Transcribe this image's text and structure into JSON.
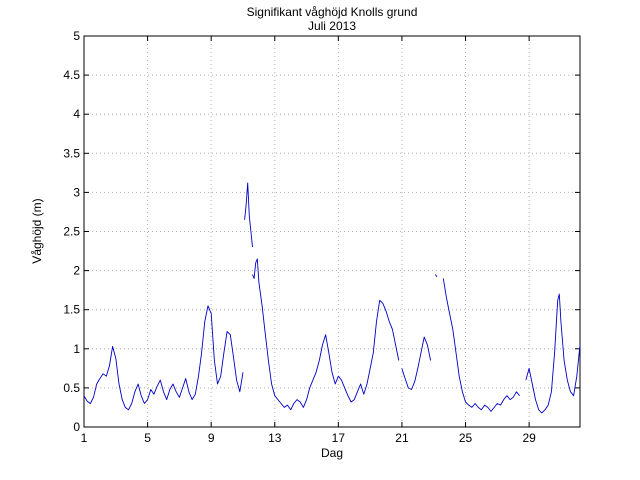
{
  "chart_data": {
    "type": "line",
    "title": "Signifikant våghöjd Knolls grund",
    "subtitle": "Juli 2013",
    "xlabel": "Dag",
    "ylabel": "Våghöjd (m)",
    "xlim": [
      1,
      32.2
    ],
    "ylim": [
      0,
      5
    ],
    "xticks": [
      1,
      5,
      9,
      13,
      17,
      21,
      25,
      29
    ],
    "yticks": [
      0,
      0.5,
      1,
      1.5,
      2,
      2.5,
      3,
      3.5,
      4,
      4.5,
      5
    ],
    "ytick_labels": [
      "0",
      "0.5",
      "1",
      "1.5",
      "2",
      "2.5",
      "3",
      "3.5",
      "4",
      "4.5",
      "5"
    ],
    "grid": true,
    "line_color": "#0000c8",
    "series": [
      {
        "segments": [
          [
            [
              1.0,
              0.4
            ],
            [
              1.2,
              0.33
            ],
            [
              1.4,
              0.3
            ],
            [
              1.6,
              0.38
            ],
            [
              1.8,
              0.55
            ],
            [
              2.0,
              0.62
            ],
            [
              2.2,
              0.68
            ],
            [
              2.4,
              0.65
            ],
            [
              2.6,
              0.78
            ],
            [
              2.8,
              1.03
            ],
            [
              3.0,
              0.88
            ],
            [
              3.2,
              0.55
            ],
            [
              3.4,
              0.35
            ],
            [
              3.6,
              0.25
            ],
            [
              3.8,
              0.22
            ],
            [
              4.0,
              0.3
            ],
            [
              4.2,
              0.45
            ],
            [
              4.4,
              0.55
            ],
            [
              4.6,
              0.4
            ],
            [
              4.8,
              0.3
            ],
            [
              5.0,
              0.35
            ],
            [
              5.2,
              0.48
            ],
            [
              5.4,
              0.42
            ],
            [
              5.6,
              0.52
            ],
            [
              5.8,
              0.6
            ],
            [
              6.0,
              0.45
            ],
            [
              6.2,
              0.35
            ],
            [
              6.4,
              0.48
            ],
            [
              6.6,
              0.55
            ],
            [
              6.8,
              0.45
            ],
            [
              7.0,
              0.38
            ],
            [
              7.2,
              0.5
            ],
            [
              7.4,
              0.62
            ],
            [
              7.6,
              0.45
            ],
            [
              7.8,
              0.35
            ],
            [
              8.0,
              0.42
            ],
            [
              8.2,
              0.65
            ],
            [
              8.4,
              0.95
            ],
            [
              8.6,
              1.35
            ],
            [
              8.8,
              1.55
            ],
            [
              9.0,
              1.45
            ],
            [
              9.2,
              0.85
            ],
            [
              9.4,
              0.55
            ],
            [
              9.6,
              0.65
            ],
            [
              9.8,
              0.95
            ],
            [
              10.0,
              1.22
            ],
            [
              10.2,
              1.18
            ],
            [
              10.4,
              0.9
            ],
            [
              10.6,
              0.6
            ],
            [
              10.8,
              0.45
            ],
            [
              11.0,
              0.7
            ]
          ],
          [
            [
              11.1,
              2.65
            ],
            [
              11.2,
              2.85
            ],
            [
              11.3,
              3.12
            ],
            [
              11.4,
              2.7
            ],
            [
              11.5,
              2.5
            ],
            [
              11.6,
              2.3
            ]
          ],
          [
            [
              11.6,
              1.95
            ],
            [
              11.7,
              1.9
            ],
            [
              11.8,
              2.1
            ],
            [
              11.9,
              2.15
            ],
            [
              12.0,
              1.85
            ],
            [
              12.2,
              1.55
            ],
            [
              12.4,
              1.2
            ],
            [
              12.6,
              0.85
            ],
            [
              12.8,
              0.55
            ],
            [
              13.0,
              0.4
            ],
            [
              13.2,
              0.35
            ],
            [
              13.4,
              0.3
            ],
            [
              13.6,
              0.25
            ],
            [
              13.8,
              0.28
            ],
            [
              14.0,
              0.22
            ],
            [
              14.2,
              0.3
            ],
            [
              14.4,
              0.35
            ],
            [
              14.6,
              0.32
            ],
            [
              14.8,
              0.25
            ],
            [
              15.0,
              0.35
            ],
            [
              15.2,
              0.5
            ],
            [
              15.4,
              0.6
            ],
            [
              15.6,
              0.7
            ],
            [
              15.8,
              0.85
            ],
            [
              16.0,
              1.05
            ],
            [
              16.2,
              1.18
            ],
            [
              16.4,
              0.95
            ],
            [
              16.6,
              0.7
            ],
            [
              16.8,
              0.55
            ],
            [
              17.0,
              0.65
            ],
            [
              17.2,
              0.6
            ],
            [
              17.4,
              0.5
            ],
            [
              17.6,
              0.4
            ],
            [
              17.8,
              0.32
            ],
            [
              18.0,
              0.35
            ],
            [
              18.2,
              0.45
            ],
            [
              18.4,
              0.55
            ],
            [
              18.6,
              0.42
            ],
            [
              18.8,
              0.55
            ],
            [
              19.0,
              0.75
            ],
            [
              19.2,
              0.95
            ],
            [
              19.4,
              1.35
            ],
            [
              19.6,
              1.62
            ],
            [
              19.8,
              1.58
            ],
            [
              20.0,
              1.48
            ],
            [
              20.2,
              1.35
            ],
            [
              20.4,
              1.25
            ],
            [
              20.6,
              1.05
            ],
            [
              20.8,
              0.85
            ]
          ],
          [
            [
              21.0,
              0.75
            ],
            [
              21.2,
              0.62
            ],
            [
              21.4,
              0.5
            ],
            [
              21.6,
              0.48
            ],
            [
              21.8,
              0.58
            ],
            [
              22.0,
              0.75
            ],
            [
              22.2,
              0.95
            ],
            [
              22.4,
              1.15
            ],
            [
              22.6,
              1.05
            ],
            [
              22.8,
              0.85
            ]
          ],
          [
            [
              23.1,
              1.95
            ],
            [
              23.2,
              1.92
            ]
          ],
          [
            [
              23.6,
              1.9
            ],
            [
              23.8,
              1.65
            ],
            [
              24.0,
              1.45
            ],
            [
              24.2,
              1.25
            ],
            [
              24.4,
              0.95
            ],
            [
              24.6,
              0.65
            ],
            [
              24.8,
              0.45
            ],
            [
              25.0,
              0.32
            ],
            [
              25.2,
              0.28
            ],
            [
              25.4,
              0.25
            ],
            [
              25.6,
              0.3
            ],
            [
              25.8,
              0.25
            ],
            [
              26.0,
              0.22
            ],
            [
              26.2,
              0.28
            ],
            [
              26.4,
              0.25
            ],
            [
              26.6,
              0.2
            ],
            [
              26.8,
              0.25
            ],
            [
              27.0,
              0.3
            ],
            [
              27.2,
              0.28
            ],
            [
              27.4,
              0.35
            ],
            [
              27.6,
              0.4
            ],
            [
              27.8,
              0.35
            ],
            [
              28.0,
              0.38
            ],
            [
              28.2,
              0.45
            ],
            [
              28.4,
              0.4
            ]
          ],
          [
            [
              28.8,
              0.6
            ],
            [
              29.0,
              0.75
            ],
            [
              29.2,
              0.55
            ],
            [
              29.4,
              0.35
            ],
            [
              29.6,
              0.22
            ],
            [
              29.8,
              0.18
            ],
            [
              30.0,
              0.22
            ],
            [
              30.2,
              0.28
            ],
            [
              30.4,
              0.45
            ],
            [
              30.6,
              0.95
            ],
            [
              30.8,
              1.62
            ],
            [
              30.9,
              1.7
            ],
            [
              31.0,
              1.35
            ],
            [
              31.2,
              0.85
            ],
            [
              31.4,
              0.6
            ],
            [
              31.6,
              0.45
            ],
            [
              31.8,
              0.4
            ],
            [
              32.0,
              0.65
            ],
            [
              32.2,
              1.05
            ]
          ]
        ]
      }
    ]
  }
}
